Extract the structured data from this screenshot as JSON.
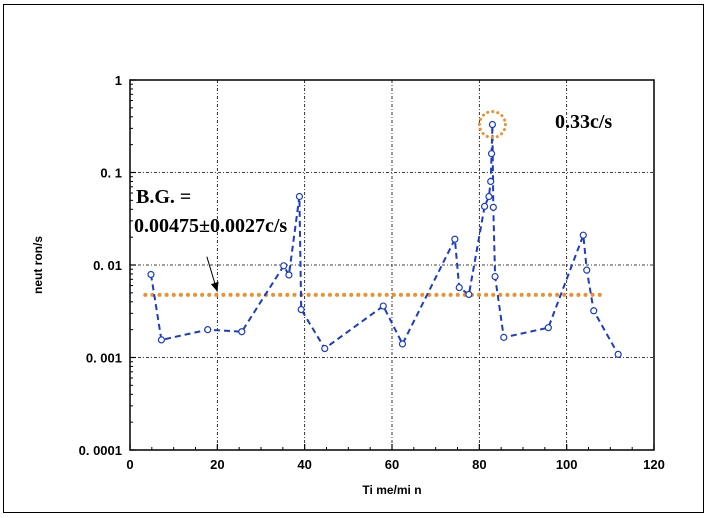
{
  "chart_data": {
    "type": "scatter",
    "xlabel": "Ti me/mi n",
    "ylabel": "neut ron/s",
    "xlim": [
      0,
      120
    ],
    "ylim": [
      0.0001,
      1
    ],
    "y_scale": "log",
    "grid": true,
    "x_ticks": [
      0,
      20,
      40,
      60,
      80,
      100,
      120
    ],
    "x_tick_labels": [
      "0",
      "20",
      "40",
      "60",
      "80",
      "100",
      "120"
    ],
    "y_ticks": [
      0.0001,
      0.001,
      0.01,
      0.1,
      1
    ],
    "y_tick_labels": [
      "0. 0001",
      "0. 001",
      "0. 01",
      "0. 1",
      "1"
    ],
    "series": [
      {
        "color": "#1a3cc8",
        "line_style": "dashed",
        "marker": "circle",
        "points": [
          [
            4.8,
            0.0079
          ],
          [
            7.2,
            0.00155
          ],
          [
            17.8,
            0.002
          ],
          [
            25.6,
            0.0019
          ],
          [
            35.2,
            0.0098
          ],
          [
            36.4,
            0.0078
          ],
          [
            38.8,
            0.055
          ],
          [
            39.2,
            0.0033
          ],
          [
            44.6,
            0.00125
          ],
          [
            58.0,
            0.0036
          ],
          [
            62.4,
            0.0014
          ],
          [
            74.4,
            0.019
          ],
          [
            75.4,
            0.0057
          ],
          [
            77.6,
            0.0048
          ],
          [
            81.2,
            0.043
          ],
          [
            82.2,
            0.055
          ],
          [
            82.6,
            0.08
          ],
          [
            82.8,
            0.16
          ],
          [
            83.0,
            0.33
          ],
          [
            83.2,
            0.042
          ],
          [
            83.6,
            0.0075
          ],
          [
            85.6,
            0.00165
          ],
          [
            95.8,
            0.0021
          ],
          [
            103.8,
            0.021
          ],
          [
            104.6,
            0.0088
          ],
          [
            106.2,
            0.0032
          ],
          [
            111.8,
            0.00108
          ]
        ]
      }
    ],
    "background_line": {
      "y": 0.00475,
      "x_range": [
        3.5,
        108.5
      ],
      "color": "#f0902a",
      "style": "dotted"
    },
    "highlight": {
      "x": 83.0,
      "y": 0.33,
      "color": "#f0902a",
      "style": "dotted-circle"
    },
    "annotations": {
      "peak_label": "0.33c/s",
      "bg_label_line1": "B.G. =",
      "bg_label_line2": "0.00475±0.0027c/s"
    },
    "arrow": {
      "from": [
        17.6,
        0.0123
      ],
      "to": [
        20.0,
        0.00515
      ]
    }
  }
}
